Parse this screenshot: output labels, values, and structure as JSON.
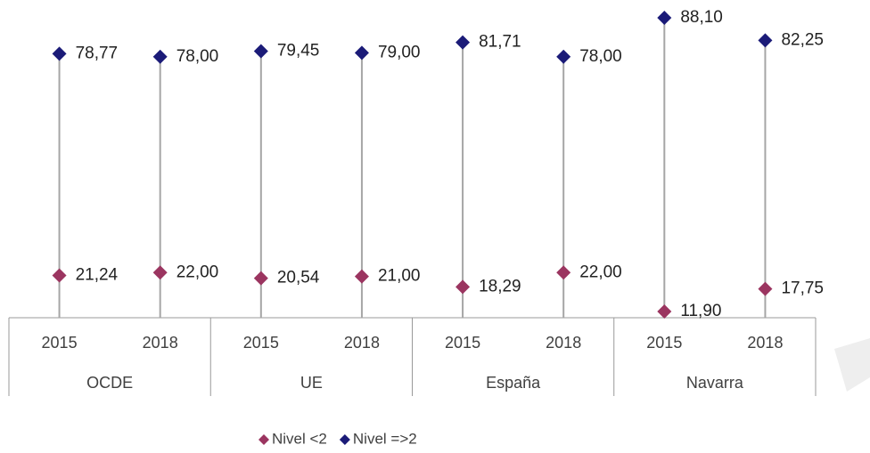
{
  "chart_data": {
    "type": "dot",
    "categories": [
      "2015",
      "2018",
      "2015",
      "2018",
      "2015",
      "2018",
      "2015",
      "2018"
    ],
    "groups": [
      "OCDE",
      "UE",
      "España",
      "Navarra"
    ],
    "series": [
      {
        "name": "Nivel <2",
        "color": "#9b3560",
        "values": [
          21.24,
          22.0,
          20.54,
          21.0,
          18.29,
          22.0,
          11.9,
          17.75
        ],
        "value_labels": [
          "21,24",
          "22,00",
          "20,54",
          "21,00",
          "18,29",
          "22,00",
          "11,90",
          "17,75"
        ]
      },
      {
        "name": "Nivel =>2",
        "color": "#1b1b78",
        "values": [
          78.77,
          78.0,
          79.45,
          79.0,
          81.71,
          78.0,
          88.1,
          82.25
        ],
        "value_labels": [
          "78,77",
          "78,00",
          "79,45",
          "79,00",
          "81,71",
          "78,00",
          "88,10",
          "82,25"
        ]
      }
    ]
  }
}
